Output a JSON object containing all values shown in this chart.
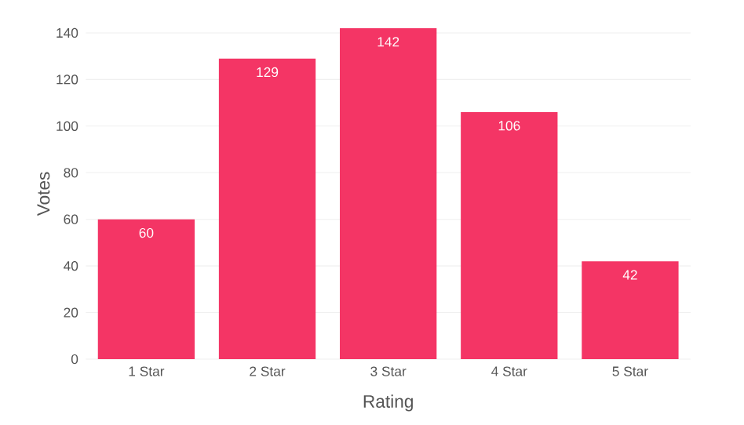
{
  "chart_data": {
    "type": "bar",
    "xlabel": "Rating",
    "ylabel": "Votes",
    "categories": [
      "1 Star",
      "2 Star",
      "3 Star",
      "4 Star",
      "5 Star"
    ],
    "values": [
      60,
      129,
      142,
      106,
      42
    ],
    "color": "#f43565",
    "ylim": [
      0,
      142
    ],
    "yticks": [
      0,
      20,
      40,
      60,
      80,
      100,
      120,
      140
    ],
    "grid": "y",
    "data_labels": true
  }
}
